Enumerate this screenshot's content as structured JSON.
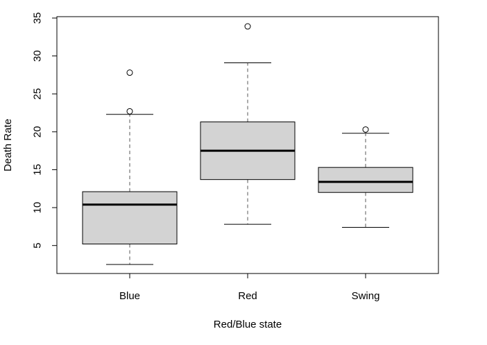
{
  "chart_data": {
    "type": "box",
    "title": "",
    "xlabel": "Red/Blue state",
    "ylabel": "Death Rate",
    "ylim": [
      1,
      35
    ],
    "yticks": [
      5,
      10,
      15,
      20,
      25,
      30,
      35
    ],
    "ytick_labels": [
      "5",
      "10",
      "15",
      "20",
      "25",
      "30",
      "35"
    ],
    "categories": [
      "Blue",
      "Red",
      "Swing"
    ],
    "boxes": [
      {
        "category": "Blue",
        "whisker_low": 2.5,
        "q1": 5.2,
        "median": 10.4,
        "q3": 12.1,
        "whisker_high": 22.3,
        "outliers": [
          22.7,
          27.8
        ]
      },
      {
        "category": "Red",
        "whisker_low": 7.8,
        "q1": 13.7,
        "median": 17.5,
        "q3": 21.3,
        "whisker_high": 29.1,
        "outliers": [
          33.9
        ]
      },
      {
        "category": "Swing",
        "whisker_low": 7.4,
        "q1": 12.0,
        "median": 13.4,
        "q3": 15.3,
        "whisker_high": 19.8,
        "outliers": [
          20.3
        ]
      }
    ],
    "colors": {
      "box_fill": "#d3d3d3",
      "stroke": "#000000",
      "whisker": "#555555"
    },
    "grid": false,
    "legend": "none"
  }
}
